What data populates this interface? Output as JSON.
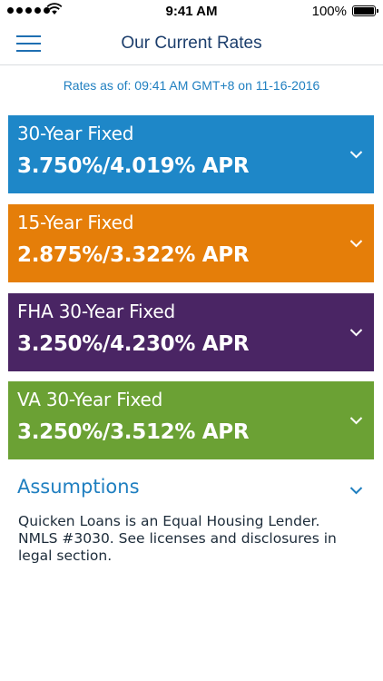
{
  "status_bar": {
    "time": "9:41 AM",
    "battery": "100%",
    "signal_icon": "signal-dots-icon",
    "wifi_icon": "wifi-icon",
    "battery_icon": "battery-icon"
  },
  "header": {
    "title": "Our Current Rates",
    "menu_icon": "hamburger-menu-icon"
  },
  "rates_as_of": "Rates as of: 09:41 AM GMT+8 on 11-16-2016",
  "rates": [
    {
      "term": "30-Year Fixed",
      "rate": "3.750%/4.019% APR",
      "color": "#1e87c8"
    },
    {
      "term": "15-Year Fixed",
      "rate": "2.875%/3.322% APR",
      "color": "#e57e09"
    },
    {
      "term": "FHA 30-Year Fixed",
      "rate": "3.250%/4.230% APR",
      "color": "#4a2564"
    },
    {
      "term": "VA 30-Year Fixed",
      "rate": "3.250%/3.512% APR",
      "color": "#6ba134"
    }
  ],
  "assumptions": {
    "label": "Assumptions",
    "chevron_icon": "chevron-down-icon"
  },
  "disclosure": "Quicken Loans is an Equal Housing Lender. NMLS #3030. See licenses and disclosures in legal section.",
  "colors": {
    "accent_blue": "#1f7fc0",
    "nav_title": "#1c3e6c"
  }
}
